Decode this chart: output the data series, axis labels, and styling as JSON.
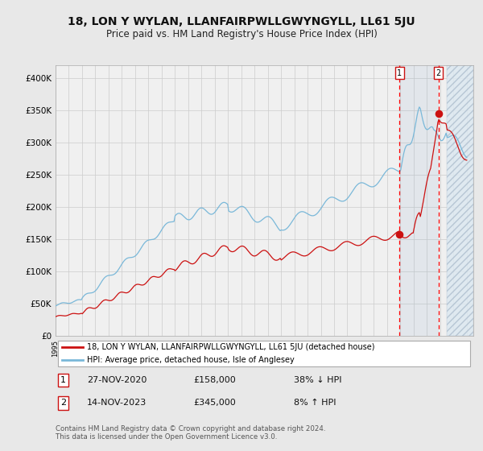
{
  "title": "18, LON Y WYLAN, LLANFAIRPWLLGWYNGYLL, LL61 5JU",
  "subtitle": "Price paid vs. HM Land Registry's House Price Index (HPI)",
  "title_fontsize": 10,
  "subtitle_fontsize": 8.5,
  "hpi_color": "#7ab8d9",
  "price_color": "#cc1111",
  "background_color": "#e8e8e8",
  "plot_bg_color": "#f0f0f0",
  "grid_color": "#cccccc",
  "ylim": [
    0,
    420000
  ],
  "yticks": [
    0,
    50000,
    100000,
    150000,
    200000,
    250000,
    300000,
    350000,
    400000
  ],
  "ytick_labels": [
    "£0",
    "£50K",
    "£100K",
    "£150K",
    "£200K",
    "£250K",
    "£300K",
    "£350K",
    "£400K"
  ],
  "legend_label_red": "18, LON Y WYLAN, LLANFAIRPWLLGWYNGYLL, LL61 5JU (detached house)",
  "legend_label_blue": "HPI: Average price, detached house, Isle of Anglesey",
  "transaction_1_date": "27-NOV-2020",
  "transaction_1_price": "£158,000",
  "transaction_1_hpi": "38% ↓ HPI",
  "transaction_2_date": "14-NOV-2023",
  "transaction_2_price": "£345,000",
  "transaction_2_hpi": "8% ↑ HPI",
  "vline_1_year": 2020.92,
  "vline_2_year": 2023.88,
  "footnote": "Contains HM Land Registry data © Crown copyright and database right 2024.\nThis data is licensed under the Open Government Licence v3.0.",
  "hatch_start": 2024.5,
  "hatch_end": 2026.5,
  "xmin": 1995,
  "xmax": 2026.5
}
